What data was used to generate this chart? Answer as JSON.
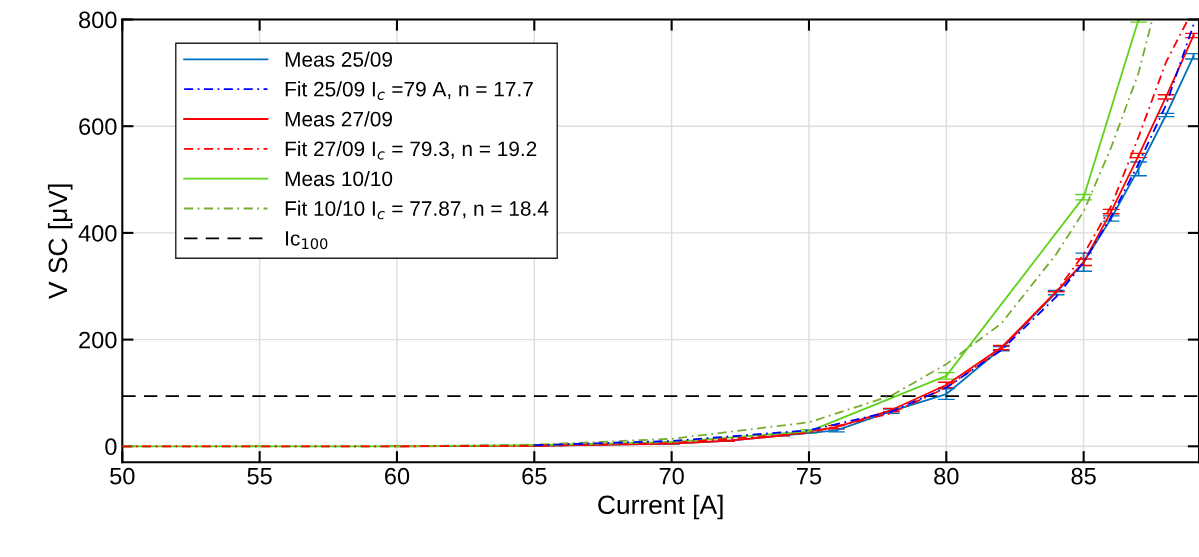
{
  "chart_data": {
    "type": "line",
    "xlabel": "Current [A]",
    "ylabel": "V SC [μV]",
    "xlim": [
      50,
      89.2
    ],
    "ylim": [
      -30,
      800
    ],
    "xticks": [
      50,
      55,
      60,
      65,
      70,
      75,
      80,
      85
    ],
    "yticks": [
      0,
      200,
      400,
      600,
      800
    ],
    "grid": true,
    "legend": "top left",
    "marker": "none",
    "series": [
      {
        "name": "Meas 25/09",
        "color": "#0072bd",
        "line_style": "solid",
        "x": [
          65,
          70,
          72,
          74,
          76,
          78,
          80,
          82,
          84,
          85,
          86,
          87,
          88,
          89
        ],
        "values": [
          1,
          5,
          10,
          20,
          30,
          66,
          98,
          183,
          288,
          345,
          427,
          520,
          621,
          731
        ],
        "errors": [
          null,
          null,
          null,
          null,
          3,
          4,
          10,
          4,
          4,
          17,
          5,
          13,
          3,
          5
        ]
      },
      {
        "name": "Fit 25/09 I$_{c}$ =79 A, n = 17.7",
        "color": "#0000ff",
        "line_style": "dashdot",
        "x": [
          65,
          70,
          75,
          78,
          80,
          82,
          84,
          85,
          86,
          87,
          88,
          89
        ],
        "values": [
          2,
          10,
          30,
          65,
          110,
          180,
          280,
          345,
          430,
          530,
          640,
          790
        ]
      },
      {
        "name": "Meas 27/09",
        "color": "#ff0000",
        "line_style": "solid",
        "x": [
          60,
          65,
          70,
          72,
          74,
          76,
          78,
          80,
          82,
          84,
          85,
          86,
          87,
          88,
          89
        ],
        "values": [
          0,
          1,
          5,
          10,
          20,
          36,
          68,
          115,
          185,
          290,
          345,
          440,
          545,
          655,
          770
        ],
        "errors": [
          null,
          null,
          null,
          null,
          null,
          3,
          3,
          5,
          4,
          null,
          6,
          4,
          4,
          4,
          4
        ]
      },
      {
        "name": "Fit 27/09 I$_{c}$ = 79.3, n = 19.2",
        "color": "#ff0000",
        "line_style": "dashdot",
        "x": [
          50,
          60,
          65,
          70,
          75,
          78,
          80,
          82,
          84,
          85,
          86,
          87,
          88,
          88.8
        ],
        "values": [
          0,
          0,
          1,
          6,
          25,
          62,
          110,
          182,
          290,
          360,
          450,
          580,
          720,
          800
        ]
      },
      {
        "name": "Meas 10/10",
        "color": "#5fd31a",
        "line_style": "solid",
        "x": [
          50,
          55,
          60,
          65,
          70,
          75,
          80,
          85,
          87
        ],
        "values": [
          0,
          0,
          0,
          2,
          8,
          28,
          132,
          467,
          800
        ],
        "errors": [
          null,
          null,
          null,
          null,
          null,
          3,
          6,
          5,
          5
        ]
      },
      {
        "name": "Fit 10/10 I$_{c}$ = 77.87, n = 18.4",
        "color": "#77ac30",
        "line_style": "dashdot",
        "x": [
          50,
          60,
          65,
          70,
          75,
          78,
          80,
          82,
          84,
          85,
          86,
          87,
          87.5
        ],
        "values": [
          0,
          0,
          3,
          14,
          45,
          95,
          154,
          230,
          360,
          440,
          560,
          700,
          800
        ]
      }
    ],
    "ref_lines": [
      {
        "axis": "y",
        "value": 94,
        "label": "Ic$_{100}$",
        "color": "#000000",
        "line_style": "dashed"
      }
    ]
  }
}
